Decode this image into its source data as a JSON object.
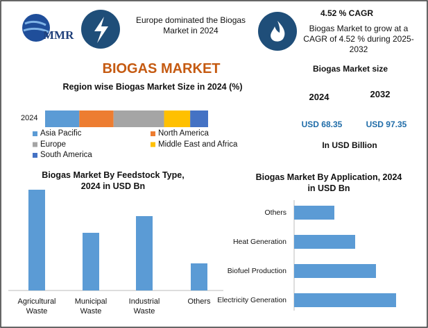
{
  "header": {
    "logo": "MMR",
    "europe_note": "Europe dominated the Biogas Market in 2024",
    "cagr": "4.52 % CAGR",
    "cagr_note": "Biogas Market to grow at a CAGR of 4.52 % during 2025-2032",
    "title": "BIOGAS MARKET"
  },
  "market_size": {
    "title": "Biogas Market size",
    "years": [
      "2024",
      "2032"
    ],
    "values": [
      "USD 68.35",
      "USD 97.35"
    ],
    "unit": "In USD Billion"
  },
  "chart_data": [
    {
      "type": "stacked_hbar",
      "title": "Region wise Biogas Market Size in 2024 (%)",
      "categories": [
        "2024"
      ],
      "xlim": [
        0,
        100
      ],
      "series": [
        {
          "name": "Asia Pacific",
          "color": "#5b9bd5",
          "values": [
            21
          ]
        },
        {
          "name": "North America",
          "color": "#ed7d31",
          "values": [
            21
          ]
        },
        {
          "name": "Europe",
          "color": "#a5a5a5",
          "values": [
            31
          ]
        },
        {
          "name": "Middle East and Africa",
          "color": "#ffc000",
          "values": [
            16
          ]
        },
        {
          "name": "South America",
          "color": "#4472c4",
          "values": [
            11
          ]
        }
      ]
    },
    {
      "type": "bar",
      "title": "Biogas Market By Feedstock Type, 2024 in USD Bn",
      "categories": [
        "Agricultural Waste",
        "Municipal Waste",
        "Industrial Waste",
        "Others"
      ],
      "values": [
        145,
        83,
        107,
        39
      ],
      "color": "#5b9bd5",
      "ylim": [
        0,
        150
      ]
    },
    {
      "type": "hbar",
      "title": "Biogas Market By Application, 2024 in USD Bn",
      "categories": [
        "Others",
        "Heat Generation",
        "Biofuel Production",
        "Electricity Generation"
      ],
      "values": [
        58,
        88,
        118,
        147
      ],
      "color": "#5b9bd5",
      "xlim": [
        0,
        150
      ]
    }
  ]
}
